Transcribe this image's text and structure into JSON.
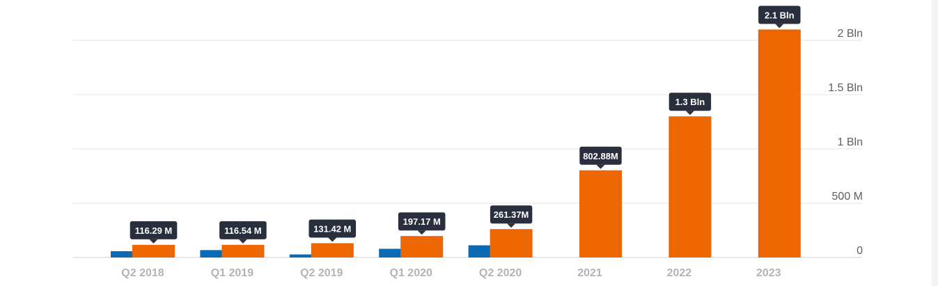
{
  "chart_data": {
    "type": "bar",
    "title": "",
    "xlabel": "",
    "ylabel": "",
    "ylim": [
      0,
      2100000000
    ],
    "y_axis_position": "right",
    "grid": true,
    "y_ticks": [
      {
        "value": 0,
        "label": "0"
      },
      {
        "value": 500000000,
        "label": "500 M"
      },
      {
        "value": 1000000000,
        "label": "1 Bln"
      },
      {
        "value": 1500000000,
        "label": "1.5 Bln"
      },
      {
        "value": 2000000000,
        "label": "2 Bln"
      }
    ],
    "categories": [
      "Q2 2018",
      "Q1 2019",
      "Q2 2019",
      "Q1 2020",
      "Q2 2020",
      "2021",
      "2022",
      "2023"
    ],
    "series": [
      {
        "color": "#0a6ab6",
        "values": [
          58000000,
          68000000,
          28000000,
          80000000,
          112000000,
          null,
          null,
          null
        ]
      },
      {
        "color": "#ec6602",
        "values": [
          116290000,
          116540000,
          131420000,
          197170000,
          261370000,
          802880000,
          1300000000,
          2100000000
        ],
        "labels": [
          "116.29 M",
          "116.54 M",
          "131.42 M",
          "197.17 M",
          "261.37M",
          "802.88M",
          "1.3 Bln",
          "2.1 Bln"
        ]
      }
    ]
  }
}
